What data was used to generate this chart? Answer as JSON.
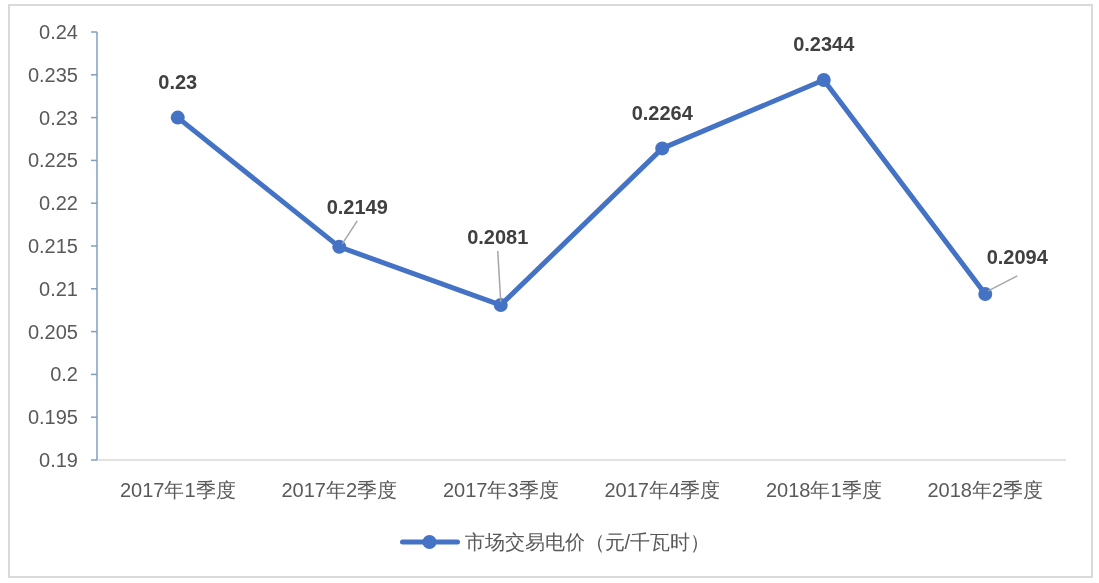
{
  "chart_data": {
    "type": "line",
    "categories": [
      "2017年1季度",
      "2017年2季度",
      "2017年3季度",
      "2017年4季度",
      "2018年1季度",
      "2018年2季度"
    ],
    "series": [
      {
        "name": "市场交易电价（元/千瓦时）",
        "color": "#4472c4",
        "values": [
          0.23,
          0.2149,
          0.2081,
          0.2264,
          0.2344,
          0.2094
        ]
      }
    ],
    "ylim": [
      0.19,
      0.24
    ],
    "yticks": [
      0.19,
      0.195,
      0.2,
      0.205,
      0.21,
      0.215,
      0.22,
      0.225,
      0.23,
      0.235,
      0.24
    ],
    "data_labels": true,
    "legend": "bottom",
    "marker": "circle",
    "line_style": "solid"
  }
}
